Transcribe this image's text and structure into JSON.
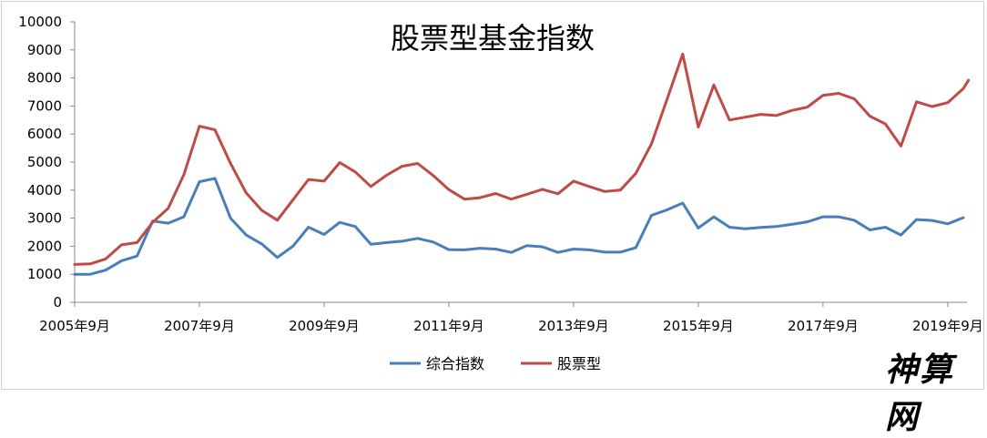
{
  "watermark": "神算网",
  "chart_data": {
    "type": "line",
    "title": "股票型基金指数",
    "xlabel": "",
    "ylabel": "",
    "ylim": [
      0,
      10000
    ],
    "yticks": [
      0,
      1000,
      2000,
      3000,
      4000,
      5000,
      6000,
      7000,
      8000,
      9000,
      10000
    ],
    "x_tick_labels": [
      "2005年9月",
      "2007年9月",
      "2009年9月",
      "2011年9月",
      "2013年9月",
      "2015年9月",
      "2017年9月",
      "2019年9月"
    ],
    "x_start": "2005-09",
    "x_end": "2019-12",
    "grid": false,
    "legend": "bottom",
    "series": [
      {
        "name": "综合指数",
        "color": "#4a7ebb",
        "points": [
          [
            "2005-09",
            1000
          ],
          [
            "2005-12",
            1000
          ],
          [
            "2006-03",
            1150
          ],
          [
            "2006-06",
            1480
          ],
          [
            "2006-09",
            1650
          ],
          [
            "2006-12",
            2900
          ],
          [
            "2007-03",
            2820
          ],
          [
            "2007-06",
            3050
          ],
          [
            "2007-09",
            4300
          ],
          [
            "2007-12",
            4420
          ],
          [
            "2008-03",
            3000
          ],
          [
            "2008-06",
            2400
          ],
          [
            "2008-09",
            2080
          ],
          [
            "2008-12",
            1600
          ],
          [
            "2009-03",
            2000
          ],
          [
            "2009-06",
            2680
          ],
          [
            "2009-09",
            2420
          ],
          [
            "2009-12",
            2850
          ],
          [
            "2010-03",
            2700
          ],
          [
            "2010-06",
            2070
          ],
          [
            "2010-09",
            2130
          ],
          [
            "2010-12",
            2180
          ],
          [
            "2011-03",
            2280
          ],
          [
            "2011-06",
            2150
          ],
          [
            "2011-09",
            1880
          ],
          [
            "2011-12",
            1870
          ],
          [
            "2012-03",
            1930
          ],
          [
            "2012-06",
            1900
          ],
          [
            "2012-09",
            1780
          ],
          [
            "2012-12",
            2020
          ],
          [
            "2013-03",
            1980
          ],
          [
            "2013-06",
            1780
          ],
          [
            "2013-09",
            1900
          ],
          [
            "2013-12",
            1870
          ],
          [
            "2014-03",
            1790
          ],
          [
            "2014-06",
            1790
          ],
          [
            "2014-09",
            1950
          ],
          [
            "2014-12",
            3100
          ],
          [
            "2015-03",
            3300
          ],
          [
            "2015-06",
            3540
          ],
          [
            "2015-09",
            2650
          ],
          [
            "2015-12",
            3050
          ],
          [
            "2016-03",
            2680
          ],
          [
            "2016-06",
            2620
          ],
          [
            "2016-09",
            2670
          ],
          [
            "2016-12",
            2700
          ],
          [
            "2017-03",
            2780
          ],
          [
            "2017-06",
            2870
          ],
          [
            "2017-09",
            3050
          ],
          [
            "2017-12",
            3050
          ],
          [
            "2018-03",
            2930
          ],
          [
            "2018-06",
            2580
          ],
          [
            "2018-09",
            2680
          ],
          [
            "2018-12",
            2400
          ],
          [
            "2019-03",
            2950
          ],
          [
            "2019-06",
            2920
          ],
          [
            "2019-09",
            2800
          ],
          [
            "2019-12",
            3020
          ]
        ]
      },
      {
        "name": "股票型",
        "color": "#be4b48",
        "points": [
          [
            "2005-09",
            1350
          ],
          [
            "2005-12",
            1370
          ],
          [
            "2006-03",
            1550
          ],
          [
            "2006-06",
            2050
          ],
          [
            "2006-09",
            2130
          ],
          [
            "2006-12",
            2850
          ],
          [
            "2007-03",
            3350
          ],
          [
            "2007-06",
            4550
          ],
          [
            "2007-09",
            6280
          ],
          [
            "2007-12",
            6150
          ],
          [
            "2008-03",
            4950
          ],
          [
            "2008-06",
            3900
          ],
          [
            "2008-09",
            3280
          ],
          [
            "2008-12",
            2930
          ],
          [
            "2009-03",
            3650
          ],
          [
            "2009-06",
            4380
          ],
          [
            "2009-09",
            4320
          ],
          [
            "2009-12",
            4980
          ],
          [
            "2010-03",
            4650
          ],
          [
            "2010-06",
            4130
          ],
          [
            "2010-09",
            4530
          ],
          [
            "2010-12",
            4850
          ],
          [
            "2011-03",
            4950
          ],
          [
            "2011-06",
            4520
          ],
          [
            "2011-09",
            4020
          ],
          [
            "2011-12",
            3680
          ],
          [
            "2012-03",
            3730
          ],
          [
            "2012-06",
            3880
          ],
          [
            "2012-09",
            3680
          ],
          [
            "2012-12",
            3850
          ],
          [
            "2013-03",
            4030
          ],
          [
            "2013-06",
            3870
          ],
          [
            "2013-09",
            4320
          ],
          [
            "2013-12",
            4130
          ],
          [
            "2014-03",
            3950
          ],
          [
            "2014-06",
            4000
          ],
          [
            "2014-09",
            4600
          ],
          [
            "2014-12",
            5650
          ],
          [
            "2015-03",
            7250
          ],
          [
            "2015-06",
            8850
          ],
          [
            "2015-09",
            6250
          ],
          [
            "2015-12",
            7750
          ],
          [
            "2016-03",
            6500
          ],
          [
            "2016-06",
            6600
          ],
          [
            "2016-09",
            6700
          ],
          [
            "2016-12",
            6660
          ],
          [
            "2017-03",
            6840
          ],
          [
            "2017-06",
            6960
          ],
          [
            "2017-09",
            7380
          ],
          [
            "2017-12",
            7450
          ],
          [
            "2018-03",
            7260
          ],
          [
            "2018-06",
            6640
          ],
          [
            "2018-09",
            6360
          ],
          [
            "2018-12",
            5570
          ],
          [
            "2019-03",
            7150
          ],
          [
            "2019-06",
            6980
          ],
          [
            "2019-09",
            7120
          ],
          [
            "2019-12",
            7620
          ],
          [
            "2020-01",
            7920
          ]
        ]
      }
    ]
  }
}
